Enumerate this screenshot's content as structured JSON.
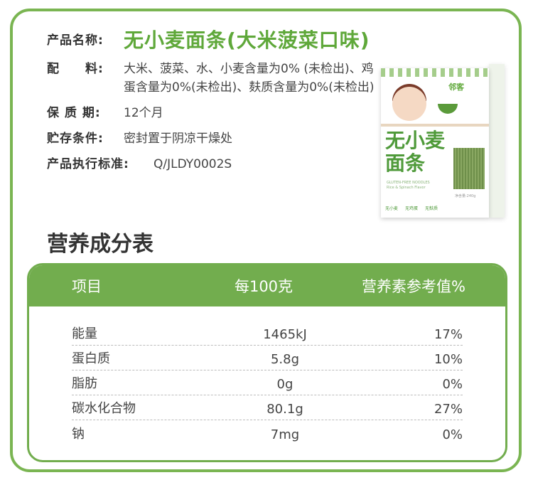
{
  "product": {
    "name_label": "产品名称:",
    "name": "无小麦面条(大米菠菜口味)",
    "ingredients_label": "配　　料:",
    "ingredients": "大米、菠菜、水、小麦含量为0% (未检出)、鸡蛋含量为0%(未检出)、麸质含量为0%(未检出)",
    "shelf_life_label": "保 质 期:",
    "shelf_life": "12个月",
    "storage_label": "贮存条件:",
    "storage": "密封置于阴凉干燥处",
    "standard_label": "产品执行标准:",
    "standard": "Q/JLDY0002S"
  },
  "package": {
    "brand": "邻客",
    "title": "无小麦面条",
    "en1": "GLUTEN-FREE NOODLES",
    "en2": "Rice & Spinach Flavor",
    "net": "净含量:240g",
    "badges": [
      "无小麦",
      "无鸡蛋",
      "无麸质"
    ]
  },
  "nutrition": {
    "title": "营养成分表",
    "headers": [
      "项目",
      "每100克",
      "营养素参考值%"
    ],
    "rows": [
      [
        "能量",
        "1465kJ",
        "17%"
      ],
      [
        "蛋白质",
        "5.8g",
        "10%"
      ],
      [
        "脂肪",
        "0g",
        "0%"
      ],
      [
        "碳水化合物",
        "80.1g",
        "27%"
      ],
      [
        "钠",
        "7mg",
        "0%"
      ]
    ]
  },
  "colors": {
    "accent": "#72ad4e",
    "title": "#5fa83a"
  }
}
